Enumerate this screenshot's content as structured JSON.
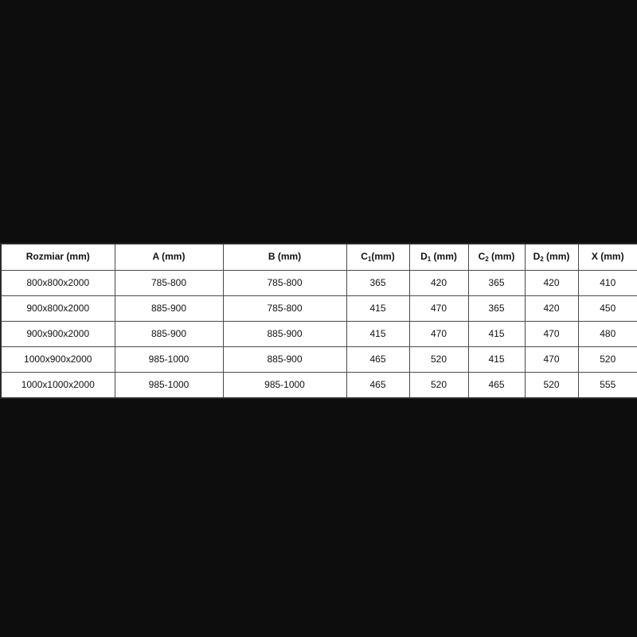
{
  "colors": {
    "page_background": "#0d0d0d",
    "table_background": "#ffffff",
    "table_border": "#4a4a4a",
    "text": "#111111"
  },
  "table": {
    "headers": [
      {
        "base": "Rozmiar",
        "sub": "",
        "unit": " (mm)"
      },
      {
        "base": "A",
        "sub": "",
        "unit": " (mm)"
      },
      {
        "base": "B",
        "sub": "",
        "unit": " (mm)"
      },
      {
        "base": "C",
        "sub": "1",
        "unit": "(mm)"
      },
      {
        "base": "D",
        "sub": "1",
        "unit": " (mm)"
      },
      {
        "base": "C",
        "sub": "2",
        "unit": " (mm)"
      },
      {
        "base": "D",
        "sub": "2",
        "unit": " (mm)"
      },
      {
        "base": "X",
        "sub": "",
        "unit": " (mm)"
      }
    ],
    "rows": [
      [
        "800x800x2000",
        "785-800",
        "785-800",
        "365",
        "420",
        "365",
        "420",
        "410"
      ],
      [
        "900x800x2000",
        "885-900",
        "785-800",
        "415",
        "470",
        "365",
        "420",
        "450"
      ],
      [
        "900x900x2000",
        "885-900",
        "885-900",
        "415",
        "470",
        "415",
        "470",
        "480"
      ],
      [
        "1000x900x2000",
        "985-1000",
        "885-900",
        "465",
        "520",
        "415",
        "470",
        "520"
      ],
      [
        "1000x1000x2000",
        "985-1000",
        "985-1000",
        "465",
        "520",
        "465",
        "520",
        "555"
      ]
    ]
  }
}
